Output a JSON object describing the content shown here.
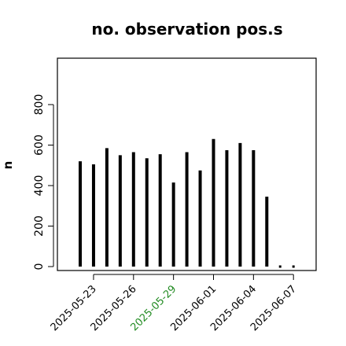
{
  "chart_data": {
    "type": "bar",
    "title": "no. observation pos.s",
    "xlabel": "",
    "ylabel": "n",
    "ylim": [
      0,
      1000
    ],
    "yticks": [
      0,
      200,
      400,
      600,
      800
    ],
    "grid": false,
    "legend": "none",
    "categories": [
      "2025-05-22",
      "2025-05-23",
      "2025-05-24",
      "2025-05-25",
      "2025-05-26",
      "2025-05-27",
      "2025-05-28",
      "2025-05-29",
      "2025-05-30",
      "2025-05-31",
      "2025-06-01",
      "2025-06-02",
      "2025-06-03",
      "2025-06-04",
      "2025-06-05",
      "2025-06-06",
      "2025-06-07"
    ],
    "values": [
      520,
      505,
      585,
      550,
      565,
      535,
      555,
      415,
      565,
      475,
      630,
      575,
      610,
      575,
      345,
      0,
      0
    ],
    "xtick_labels": [
      {
        "label": "2025-05-23",
        "category": "2025-05-23",
        "color": "#000000"
      },
      {
        "label": "2025-05-26",
        "category": "2025-05-26",
        "color": "#000000"
      },
      {
        "label": "2025-05-29",
        "category": "2025-05-29",
        "color": "#228B22"
      },
      {
        "label": "2025-06-01",
        "category": "2025-06-01",
        "color": "#000000"
      },
      {
        "label": "2025-06-04",
        "category": "2025-06-04",
        "color": "#000000"
      },
      {
        "label": "2025-06-07",
        "category": "2025-06-07",
        "color": "#000000"
      }
    ],
    "bar_color": "#000000"
  }
}
